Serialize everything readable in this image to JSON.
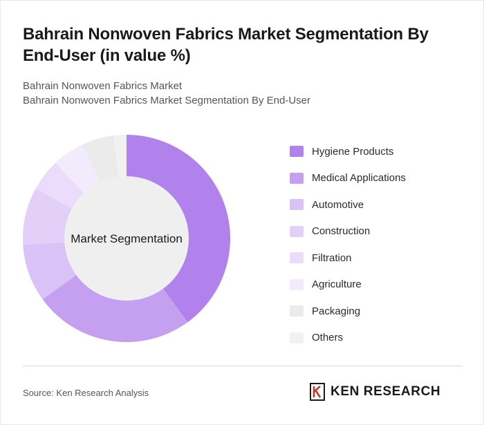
{
  "header": {
    "title": "Bahrain Nonwoven Fabrics Market Segmentation By End-User (in value %)",
    "subtitle_line1": "Bahrain Nonwoven Fabrics Market",
    "subtitle_line2": "Bahrain Nonwoven Fabrics Market Segmentation By End-User"
  },
  "chart_data": {
    "type": "pie",
    "center_label": "Market Segmentation",
    "categories": [
      "Hygiene Products",
      "Medical Applications",
      "Automotive",
      "Construction",
      "Filtration",
      "Agriculture",
      "Packaging",
      "Others"
    ],
    "values": [
      40,
      25,
      9,
      9,
      5,
      5,
      5,
      2
    ],
    "colors": [
      "#b282ec",
      "#c5a0f0",
      "#d9c2f6",
      "#e2d0f8",
      "#eadcfa",
      "#f2ebfc",
      "#ebebeb",
      "#f1f1f1"
    ],
    "legend_position": "right"
  },
  "footer": {
    "source": "Source: Ken Research Analysis",
    "logo_text": "KEN RESEARCH"
  }
}
